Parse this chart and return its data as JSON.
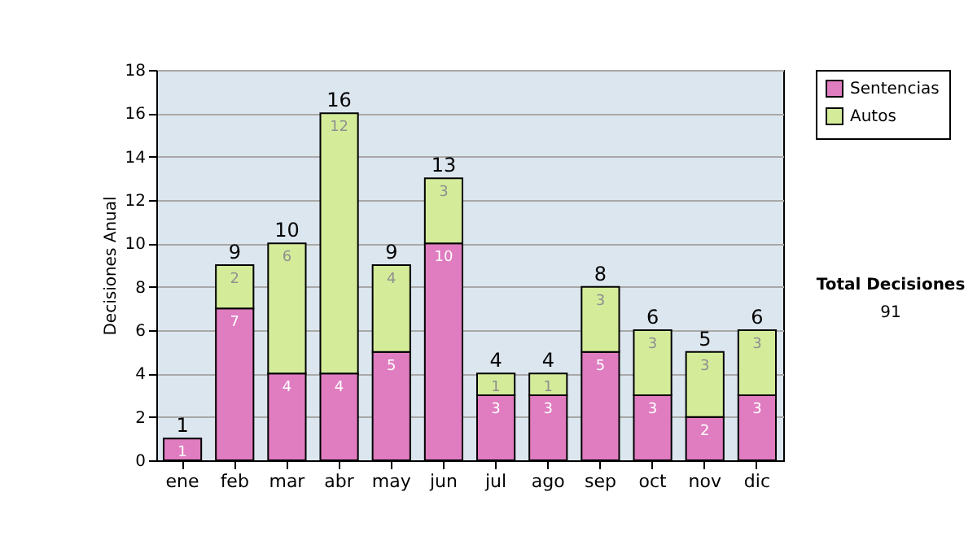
{
  "chart_data": {
    "type": "bar",
    "stacked": true,
    "ylabel": "Decisiones Anual",
    "categories": [
      "ene",
      "feb",
      "mar",
      "abr",
      "may",
      "jun",
      "jul",
      "ago",
      "sep",
      "oct",
      "nov",
      "dic"
    ],
    "series": [
      {
        "name": "Sentencias",
        "color": "#e07cc0",
        "values": [
          1,
          7,
          4,
          4,
          5,
          10,
          3,
          3,
          5,
          3,
          2,
          3
        ],
        "value_labels": [
          "1",
          "7",
          "4",
          "4",
          "5",
          "10",
          "3",
          "3",
          "5",
          "3",
          "2",
          "3"
        ]
      },
      {
        "name": "Autos",
        "color": "#d4ec9a",
        "values": [
          null,
          2,
          6,
          12,
          4,
          3,
          1,
          1,
          3,
          3,
          3,
          3
        ],
        "value_labels": [
          null,
          "2",
          "6",
          "12",
          "4",
          "3",
          "1",
          "1",
          "3",
          "3",
          "3",
          "3"
        ]
      }
    ],
    "totals": [
      "1",
      "9",
      "10",
      "16",
      "9",
      "13",
      "4",
      "4",
      "8",
      "6",
      "5",
      "6"
    ],
    "ylim": [
      0,
      18
    ],
    "yticks": [
      0,
      2,
      4,
      6,
      8,
      10,
      12,
      14,
      16,
      18
    ],
    "grid": "y",
    "legend": "right",
    "annotations": [
      "Total Decisiones",
      "91"
    ]
  }
}
